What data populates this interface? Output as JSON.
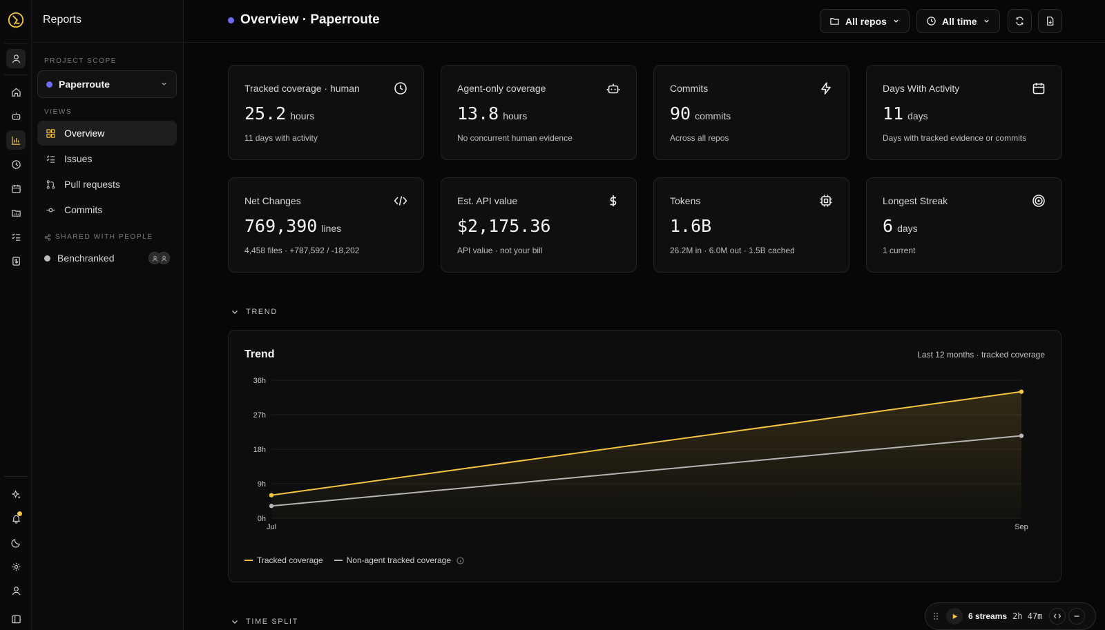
{
  "app": {
    "title": "Reports"
  },
  "sidebar": {
    "project_scope_label": "PROJECT SCOPE",
    "project_scope_value": "Paperroute",
    "views_label": "VIEWS",
    "views": [
      {
        "label": "Overview",
        "icon": "grid-icon",
        "active": true
      },
      {
        "label": "Issues",
        "icon": "checklist-icon",
        "active": false
      },
      {
        "label": "Pull requests",
        "icon": "pull-request-icon",
        "active": false
      },
      {
        "label": "Commits",
        "icon": "commit-icon",
        "active": false
      }
    ],
    "shared_label": "SHARED WITH PEOPLE",
    "shared": [
      {
        "label": "Benchranked"
      }
    ]
  },
  "header": {
    "title": "Overview · Paperroute",
    "repos_filter": "All repos",
    "time_filter": "All time"
  },
  "cards": [
    {
      "title": "Tracked coverage · human",
      "value": "25.2",
      "unit": "hours",
      "sub": "11 days with activity",
      "icon": "clock-icon"
    },
    {
      "title": "Agent-only coverage",
      "value": "13.8",
      "unit": "hours",
      "sub": "No concurrent human evidence",
      "icon": "robot-icon"
    },
    {
      "title": "Commits",
      "value": "90",
      "unit": "commits",
      "sub": "Across all repos",
      "icon": "lightning-icon"
    },
    {
      "title": "Days With Activity",
      "value": "11",
      "unit": "days",
      "sub": "Days with tracked evidence or commits",
      "icon": "calendar-icon"
    },
    {
      "title": "Net Changes",
      "value": "769,390",
      "unit": "lines",
      "sub": "4,458 files · +787,592 / -18,202",
      "icon": "code-icon"
    },
    {
      "title": "Est. API value",
      "value": "$2,175.36",
      "unit": "",
      "sub": "API value · not your bill",
      "icon": "dollar-icon"
    },
    {
      "title": "Tokens",
      "value": "1.6B",
      "unit": "",
      "sub": "26.2M in · 6.0M out · 1.5B cached",
      "icon": "chip-icon"
    },
    {
      "title": "Longest Streak",
      "value": "6",
      "unit": "days",
      "sub": "1 current",
      "icon": "target-icon"
    }
  ],
  "sections": {
    "trend": "TREND",
    "time_split": "TIME SPLIT"
  },
  "trend": {
    "title": "Trend",
    "meta": "Last 12 months · tracked coverage",
    "legend_tracked": "Tracked coverage",
    "legend_nonagent": "Non-agent tracked coverage"
  },
  "chart_data": {
    "type": "line",
    "title": "Trend",
    "x": [
      "Jul",
      "Sep"
    ],
    "ylim": [
      0,
      36
    ],
    "yticks": [
      "0h",
      "9h",
      "18h",
      "27h",
      "36h"
    ],
    "series": [
      {
        "name": "Tracked coverage",
        "values": [
          6.0,
          33.0
        ],
        "color": "#f5c542"
      },
      {
        "name": "Non-agent tracked coverage",
        "values": [
          3.2,
          21.5
        ],
        "color": "#b5b5b5"
      }
    ],
    "grid": true,
    "legend": "bottom-left"
  },
  "player": {
    "streams": "6 streams",
    "duration": "2h 47m"
  },
  "colors": {
    "accent": "#f5c542",
    "project_dot": "#6c6cf0",
    "background": "#070707"
  }
}
